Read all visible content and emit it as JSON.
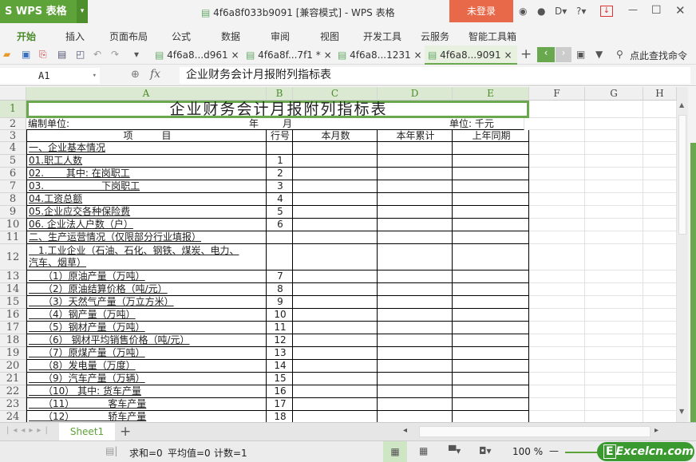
{
  "app": {
    "name": "WPS 表格",
    "title": "4f6a8f033b9091 [兼容模式] - WPS 表格",
    "login": "未登录",
    "accent": "#5ea23a"
  },
  "menu": [
    "开始",
    "插入",
    "页面布局",
    "公式",
    "数据",
    "审阅",
    "视图",
    "开发工具",
    "云服务",
    "智能工具箱"
  ],
  "doc_tabs": [
    {
      "label": "4f6a8...d961"
    },
    {
      "label": "4f6a8f...7f1 *"
    },
    {
      "label": "4f6a8...1231"
    },
    {
      "label": "4f6a8...9091",
      "active": true
    }
  ],
  "search_label": "点此查找命令",
  "formula_bar": {
    "name_box": "A1",
    "fx": "fx",
    "content": "企业财务会计月报附列指标表"
  },
  "columns": [
    "A",
    "B",
    "C",
    "D",
    "E",
    "F",
    "G",
    "H"
  ],
  "sheet": {
    "title": "企业财务会计月报附列指标表",
    "row2": {
      "unit_org": "编制单位:",
      "year": "年",
      "month": "月",
      "unit": "单位: 千元"
    },
    "headers": [
      "项　　　目",
      "行号",
      "本月数",
      "本年累计",
      "上年同期"
    ],
    "rows": [
      {
        "n": "4",
        "item": "一、企业基本情况",
        "line": ""
      },
      {
        "n": "5",
        "item": "01.职工人数",
        "line": "1"
      },
      {
        "n": "6",
        "item": "02.　　 其中: 在岗职工",
        "line": "2"
      },
      {
        "n": "7",
        "item": "03.　　　　　　下岗职工",
        "line": "3"
      },
      {
        "n": "8",
        "item": "04.工资总额",
        "line": "4"
      },
      {
        "n": "9",
        "item": "05.企业应交各种保险费",
        "line": "5"
      },
      {
        "n": "10",
        "item": "06. 企业法人户数（户）",
        "line": "6"
      },
      {
        "n": "11",
        "item": "二、生产运营情况（仅限部分行业填报）",
        "line": ""
      },
      {
        "n": "12",
        "item": "　1.工业企业（石油、石化、钢铁、煤炭、电力、",
        "item2": "汽车、烟草）",
        "line": ""
      },
      {
        "n": "13",
        "item": "　　（1）原油产量（万吨）",
        "line": "7"
      },
      {
        "n": "14",
        "item": "　　（2）原油结算价格（吨/元）",
        "line": "8"
      },
      {
        "n": "15",
        "item": "　　（3）天然气产量（万立方米）",
        "line": "9"
      },
      {
        "n": "16",
        "item": "　　（4）钢产量（万吨）",
        "line": "10"
      },
      {
        "n": "17",
        "item": "　　（5）钢材产量（万吨）",
        "line": "11"
      },
      {
        "n": "18",
        "item": "　　（6） 钢材平均销售价格（吨/元）",
        "line": "12"
      },
      {
        "n": "19",
        "item": "　　（7）原煤产量（万吨）",
        "line": "13"
      },
      {
        "n": "20",
        "item": "　　（8）发电量（万度）",
        "line": "14"
      },
      {
        "n": "21",
        "item": "　　（9）汽车产量（万辆）",
        "line": "15"
      },
      {
        "n": "22",
        "item": "　　（10） 其中: 货车产量",
        "line": "16"
      },
      {
        "n": "23",
        "item": "　　（11）　　　　客车产量",
        "line": "17"
      },
      {
        "n": "24",
        "item": "　　（12）　　　　轿车产量",
        "line": "18"
      }
    ]
  },
  "sheet_tabs": [
    "Sheet1"
  ],
  "status": {
    "sum": "求和=0",
    "avg": "平均值=0",
    "count": "计数=1",
    "zoom": "100 %"
  },
  "watermark": "Excelcn.com"
}
